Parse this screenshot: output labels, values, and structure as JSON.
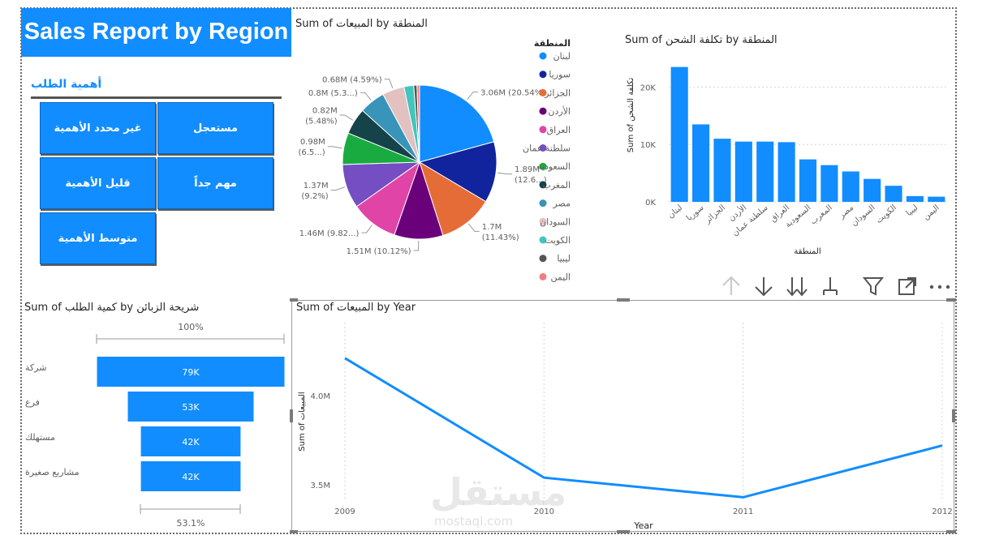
{
  "report": {
    "title": "Sales Report by Region"
  },
  "slicer": {
    "title": "أهمية الطلب",
    "options": [
      "مستعجل",
      "غير محدد الأهمية",
      "مهم جداً",
      "قليل الأهمية",
      "متوسط الأهمية"
    ]
  },
  "toolbar": {
    "icons": [
      "arrow-up-icon",
      "arrow-down-icon",
      "double-arrow-down-icon",
      "expand-hierarchy-icon",
      "filter-icon",
      "focus-mode-icon",
      "more-options-icon"
    ]
  },
  "watermark": {
    "text": "مستقل",
    "sub": "mostaql.com"
  },
  "colors": {
    "accent": "#118dff"
  },
  "chart_data": [
    {
      "id": "pie",
      "type": "pie",
      "title": "Sum of المبيعات by المنطقة",
      "legend_title": "المنطقة",
      "legend_position": "right",
      "slices": [
        {
          "label": "لبنان",
          "value": 3.06,
          "color": "#118dff",
          "data_label": [
            "3.06M (20.54%)"
          ]
        },
        {
          "label": "سوريا",
          "value": 1.89,
          "color": "#12239e",
          "data_label": [
            "1.89M",
            "(12.6...)"
          ]
        },
        {
          "label": "الجزائر",
          "value": 1.7,
          "color": "#e66c37",
          "data_label": [
            "1.7M",
            "(11.43%)"
          ]
        },
        {
          "label": "الأردن",
          "value": 1.51,
          "color": "#6b007b",
          "data_label": [
            "1.51M (10.12%)"
          ]
        },
        {
          "label": "العراق",
          "value": 1.46,
          "color": "#e044a7",
          "data_label": [
            "1.46M (9.82...)"
          ]
        },
        {
          "label": "سلطنة عمان",
          "value": 1.37,
          "color": "#744ec2",
          "data_label": [
            "1.37M",
            "(9.2%)"
          ]
        },
        {
          "label": "السعودية",
          "value": 0.98,
          "color": "#1aab40",
          "data_label": [
            "0.98M",
            "(6.5...)"
          ]
        },
        {
          "label": "المغرب",
          "value": 0.82,
          "color": "#15434a",
          "data_label": [
            "0.82M",
            "(5.48%)"
          ]
        },
        {
          "label": "مصر",
          "value": 0.8,
          "color": "#3894b8",
          "data_label": [
            "0.8M (5.3...)"
          ]
        },
        {
          "label": "السودان",
          "value": 0.68,
          "color": "#e3c1c1",
          "data_label": [
            "0.68M (4.59%)"
          ]
        },
        {
          "label": "الكويت",
          "value": 0.3,
          "color": "#41c6be",
          "data_label": []
        },
        {
          "label": "ليبيا",
          "value": 0.1,
          "color": "#555555",
          "data_label": []
        },
        {
          "label": "اليمن",
          "value": 0.08,
          "color": "#f07f7f",
          "data_label": []
        }
      ]
    },
    {
      "id": "shipping",
      "type": "bar",
      "title": "Sum of تكلفة الشحن by المنطقة",
      "xlabel": "المنطقة",
      "ylabel": "Sum of تكلفة الشحن",
      "ylim": [
        0,
        25000
      ],
      "yticks": [
        0,
        10000,
        20000
      ],
      "ytick_labels": [
        "0K",
        "10K",
        "20K"
      ],
      "grid": true,
      "categories": [
        "لبنان",
        "سوريا",
        "الجزائر",
        "الأردن",
        "سلطنة عمان",
        "العراق",
        "السعودية",
        "المغرب",
        "مصر",
        "السودان",
        "الكويت",
        "ليبيا",
        "اليمن"
      ],
      "values": [
        23500,
        13500,
        11000,
        10500,
        10500,
        10400,
        7400,
        6400,
        5300,
        4000,
        2800,
        1000,
        900
      ],
      "color": "#118dff"
    },
    {
      "id": "funnel",
      "type": "bar",
      "subtype": "funnel",
      "title": "Sum of كمية الطلب by شريحة الزبائن",
      "categories": [
        "شركة",
        "فرع",
        "مستهلك",
        "مشاريع صغيرة"
      ],
      "values": [
        79,
        53,
        42,
        42
      ],
      "value_labels": [
        "79K",
        "53K",
        "42K",
        "42K"
      ],
      "top_label": "100%",
      "bottom_label": "53.1%",
      "color": "#118dff"
    },
    {
      "id": "line",
      "type": "line",
      "title": "Sum of المبيعات by Year",
      "xlabel": "Year",
      "ylabel": "Sum of المبيعات",
      "x": [
        2009,
        2010,
        2011,
        2012
      ],
      "y": [
        4.21,
        3.54,
        3.43,
        3.72
      ],
      "ytick_values": [
        3.5,
        4.0
      ],
      "ytick_labels": [
        "3.5M",
        "4.0M"
      ],
      "grid": true,
      "color": "#118dff"
    }
  ]
}
